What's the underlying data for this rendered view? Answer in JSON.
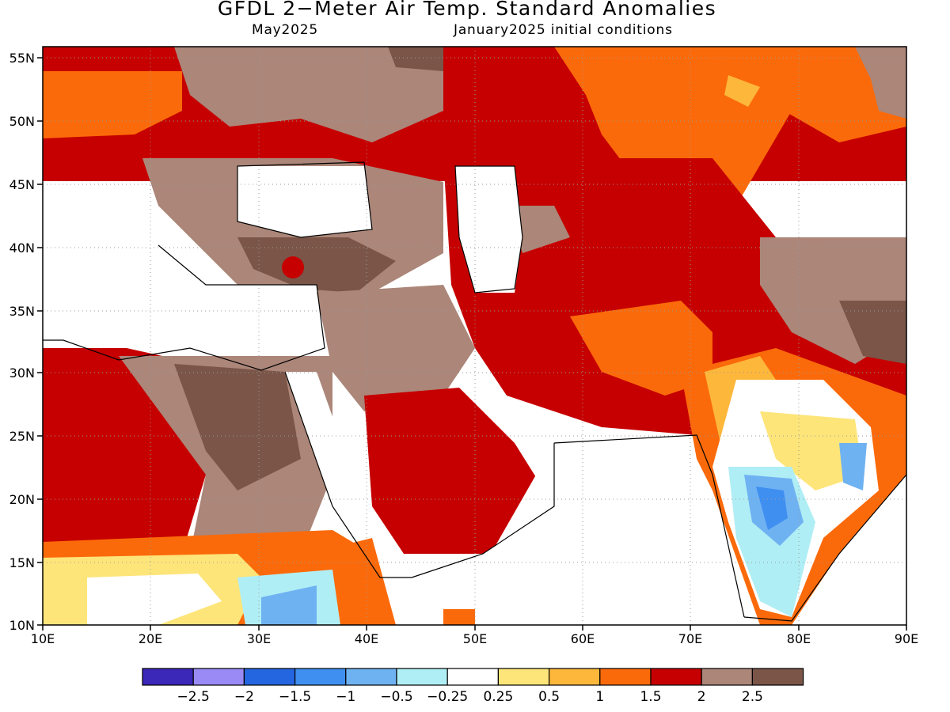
{
  "title": "GFDL 2−Meter Air Temp. Standard Anomalies",
  "valid_month": "May2025",
  "init_conditions": "January2025 initial conditions",
  "lat_labels": [
    "55N",
    "50N",
    "45N",
    "40N",
    "35N",
    "30N",
    "25N",
    "20N",
    "15N",
    "10N"
  ],
  "lon_labels": [
    "10E",
    "20E",
    "30E",
    "40E",
    "50E",
    "60E",
    "70E",
    "80E",
    "90E"
  ],
  "colorbar": {
    "colors": [
      "#3b27b8",
      "#9a8af5",
      "#2466e0",
      "#3f8ff0",
      "#6fb2f2",
      "#b0eef5",
      "#ffffff",
      "#fde57a",
      "#fdb73b",
      "#fb6a0a",
      "#c60000",
      "#ab8679",
      "#7a5548"
    ],
    "labels": [
      "−2.5",
      "−2",
      "−1.5",
      "−1",
      "−0.5",
      "−0.25",
      "0.25",
      "0.5",
      "1",
      "1.5",
      "2",
      "2.5"
    ]
  },
  "regions": {
    "europe_north": "1.5 to 2.5",
    "balkans_turkey": "2.5+",
    "central_asia": "2+",
    "arabia": "2+",
    "north_africa": "2+",
    "india_central": "-1.5 to -0.5",
    "sahel": "0.25 to 1.5",
    "east_africa": "-1 to 0.5"
  }
}
